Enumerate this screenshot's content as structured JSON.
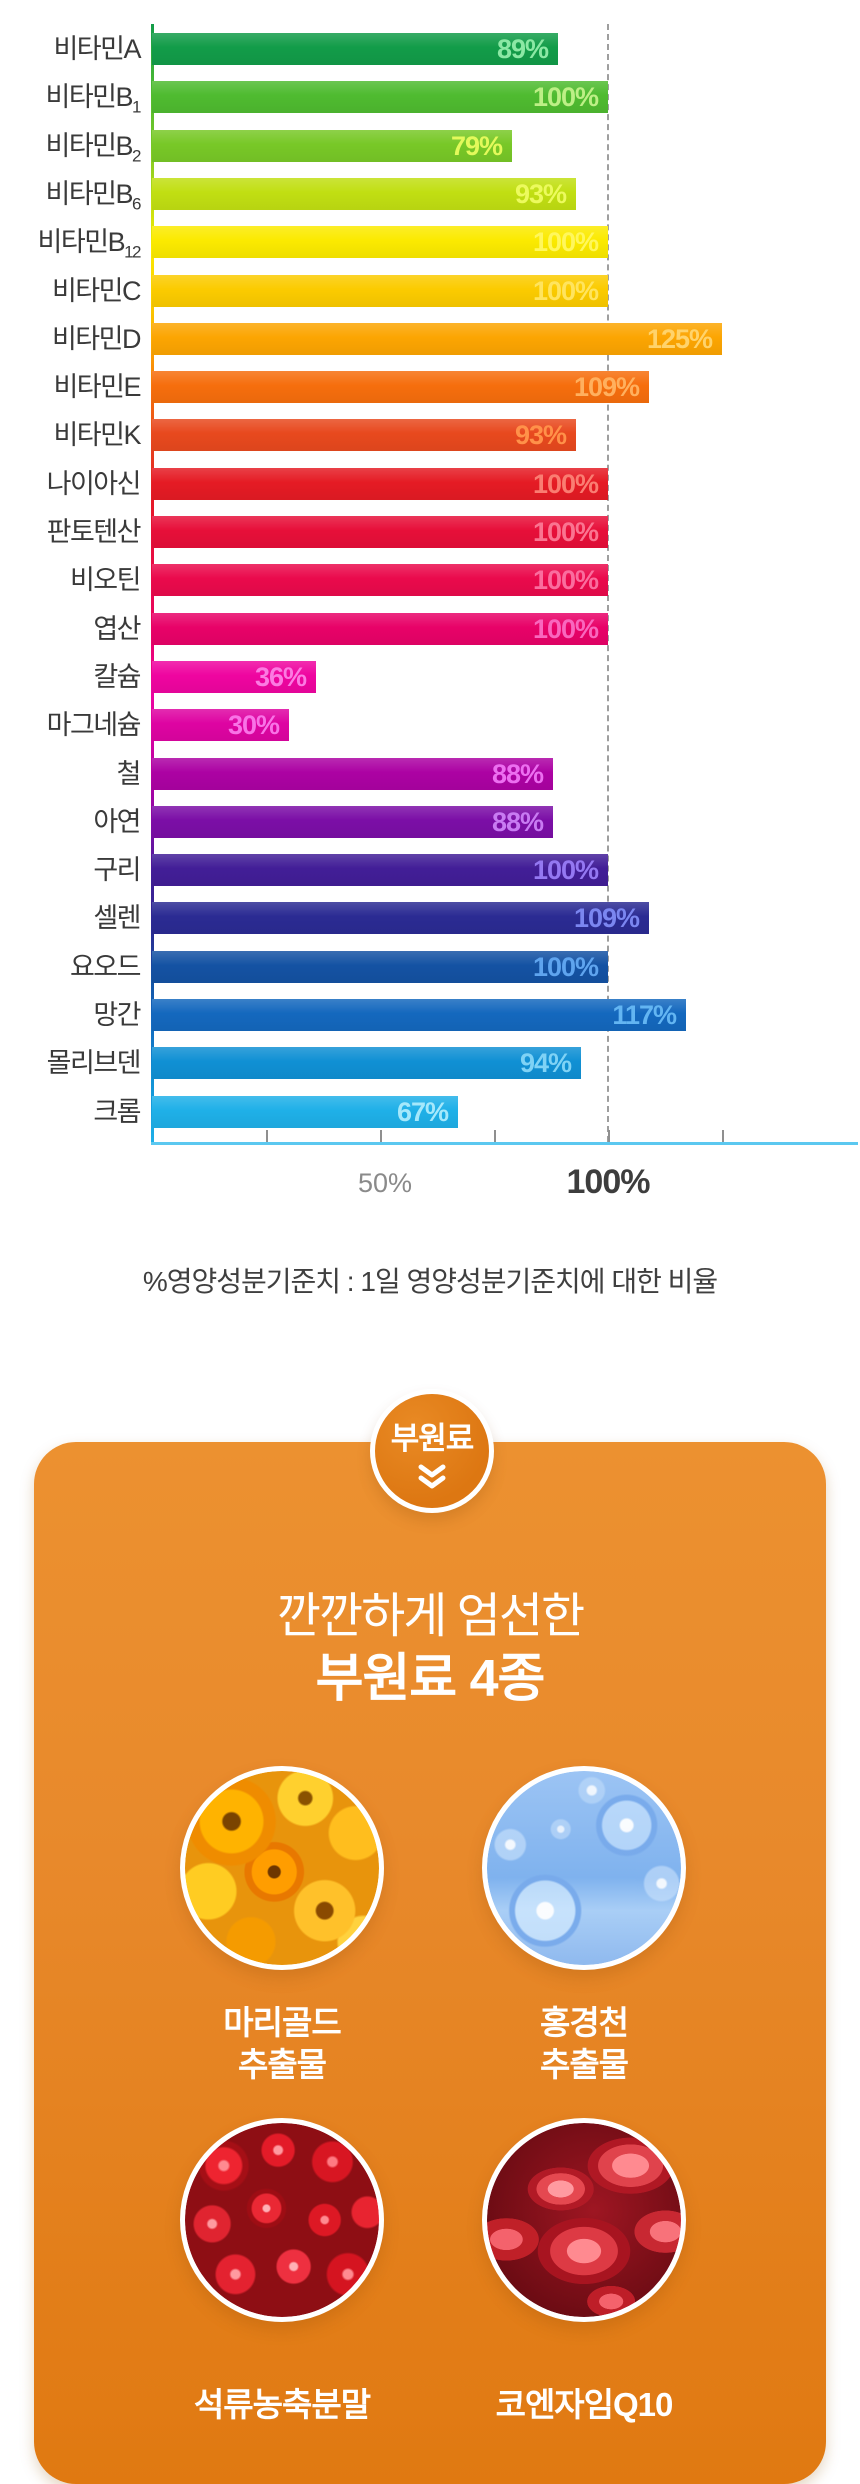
{
  "chart_data": {
    "type": "bar",
    "orientation": "horizontal",
    "title": "",
    "xlabel": "",
    "ylabel": "",
    "unit": "%",
    "xlim": [
      0,
      145
    ],
    "axis": {
      "ticks": [
        "50%",
        "100%"
      ],
      "tick_values": [
        25,
        50,
        75,
        100,
        125
      ],
      "guideline_value": 100,
      "axis_color": "#5BC8F0"
    },
    "footnote": "%영양성분기준치 : 1일 영양성분기준치에 대한 비율",
    "rows": [
      {
        "label": "비타민A",
        "sub": "",
        "value": 89,
        "value_label": "89%",
        "bar_color": "#129C49",
        "value_color": "#8BE8A4"
      },
      {
        "label": "비타민B",
        "sub": "1",
        "value": 100,
        "value_label": "100%",
        "bar_color": "#4FBB30",
        "value_color": "#BDEF86"
      },
      {
        "label": "비타민B",
        "sub": "2",
        "value": 79,
        "value_label": "79%",
        "bar_color": "#78C827",
        "value_color": "#E3F95B"
      },
      {
        "label": "비타민B",
        "sub": "6",
        "value": 93,
        "value_label": "93%",
        "bar_color": "#C1DF12",
        "value_color": "#ECFA5E"
      },
      {
        "label": "비타민B",
        "sub": "12",
        "value": 100,
        "value_label": "100%",
        "bar_color": "#FBEA00",
        "value_color": "#FFF75C"
      },
      {
        "label": "비타민C",
        "sub": "",
        "value": 100,
        "value_label": "100%",
        "bar_color": "#FBCB00",
        "value_color": "#FFE45E"
      },
      {
        "label": "비타민D",
        "sub": "",
        "value": 125,
        "value_label": "125%",
        "bar_color": "#FCA502",
        "value_color": "#FFD36B"
      },
      {
        "label": "비타민E",
        "sub": "",
        "value": 109,
        "value_label": "109%",
        "bar_color": "#F66E0D",
        "value_color": "#FFB05E"
      },
      {
        "label": "비타민K",
        "sub": "",
        "value": 93,
        "value_label": "93%",
        "bar_color": "#E8491E",
        "value_color": "#FF9149"
      },
      {
        "label": "나이아신",
        "sub": "",
        "value": 100,
        "value_label": "100%",
        "bar_color": "#E51B24",
        "value_color": "#FA7D72"
      },
      {
        "label": "판토텐산",
        "sub": "",
        "value": 100,
        "value_label": "100%",
        "bar_color": "#E70F39",
        "value_color": "#FA7490"
      },
      {
        "label": "비오틴",
        "sub": "",
        "value": 100,
        "value_label": "100%",
        "bar_color": "#EA0A4C",
        "value_color": "#FA6D9E"
      },
      {
        "label": "엽산",
        "sub": "",
        "value": 100,
        "value_label": "100%",
        "bar_color": "#E80268",
        "value_color": "#F967BE"
      },
      {
        "label": "칼슘",
        "sub": "",
        "value": 36,
        "value_label": "36%",
        "bar_color": "#EF05A0",
        "value_color": "#FB7BE2"
      },
      {
        "label": "마그네슘",
        "sub": "",
        "value": 30,
        "value_label": "30%",
        "bar_color": "#DE04A2",
        "value_color": "#F873E6"
      },
      {
        "label": "철",
        "sub": "",
        "value": 88,
        "value_label": "88%",
        "bar_color": "#AC02A3",
        "value_color": "#EC6FF0"
      },
      {
        "label": "아연",
        "sub": "",
        "value": 88,
        "value_label": "88%",
        "bar_color": "#7B0EA6",
        "value_color": "#C87BF2"
      },
      {
        "label": "구리",
        "sub": "",
        "value": 100,
        "value_label": "100%",
        "bar_color": "#421E97",
        "value_color": "#9478F2"
      },
      {
        "label": "셀렌",
        "sub": "",
        "value": 109,
        "value_label": "109%",
        "bar_color": "#2B2B93",
        "value_color": "#7B86F0"
      },
      {
        "label": "요오드",
        "sub": "",
        "value": 100,
        "value_label": "100%",
        "bar_color": "#1452A3",
        "value_color": "#5FA4EE"
      },
      {
        "label": "망간",
        "sub": "",
        "value": 117,
        "value_label": "117%",
        "bar_color": "#1468BE",
        "value_color": "#63B5F2"
      },
      {
        "label": "몰리브덴",
        "sub": "",
        "value": 94,
        "value_label": "94%",
        "bar_color": "#1090D4",
        "value_color": "#7FD2F5"
      },
      {
        "label": "크롬",
        "sub": "",
        "value": 67,
        "value_label": "67%",
        "bar_color": "#1FB0E8",
        "value_color": "#A5E8FB"
      }
    ]
  },
  "sub_section": {
    "badge_label": "부원료",
    "title_line1": "깐깐하게 엄선한",
    "title_line2": "부원료 4종",
    "panel_color": "#E8892B",
    "badge_color": "#DD7712",
    "items": [
      {
        "photo": "marigold-flowers",
        "name_lines": [
          "마리골드",
          "추출물"
        ]
      },
      {
        "photo": "rhodiola-bubbles",
        "name_lines": [
          "홍경천",
          "추출물"
        ]
      },
      {
        "photo": "pomegranate-seeds",
        "name_lines": [
          "석류농축분말"
        ]
      },
      {
        "photo": "coq10-blood-cells",
        "name_lines": [
          "코엔자임Q10"
        ]
      }
    ]
  }
}
